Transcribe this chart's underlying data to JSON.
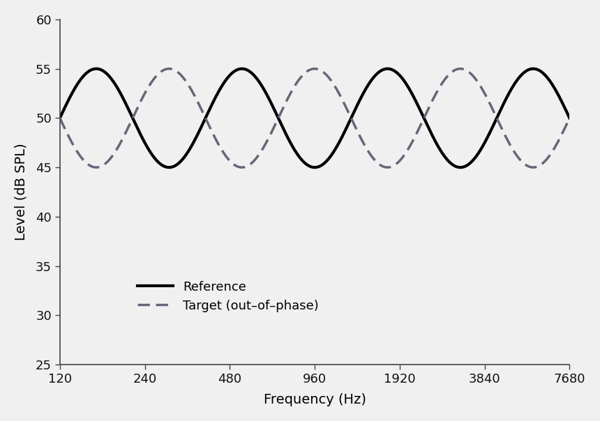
{
  "title": "",
  "xlabel": "Frequency (Hz)",
  "ylabel": "Level (dB SPL)",
  "xlim_log": [
    120,
    7680
  ],
  "ylim": [
    25,
    60
  ],
  "yticks": [
    25,
    30,
    35,
    40,
    45,
    50,
    55,
    60
  ],
  "xticks": [
    120,
    240,
    480,
    960,
    1920,
    3840,
    7680
  ],
  "xtick_labels": [
    "120",
    "240",
    "480",
    "960",
    "1920",
    "3840",
    "7680"
  ],
  "mean_level": 50,
  "amplitude": 5,
  "ref_color": "#000000",
  "target_color": "#636878",
  "ref_linewidth": 3.0,
  "target_linewidth": 2.5,
  "legend_ref": "Reference",
  "legend_target": "Target (out–of–phase)",
  "background_color": "#f0f0f0",
  "axes_background": "#f0f0f0",
  "n_cycles": 3.5,
  "phase_shift": 3.14159265
}
